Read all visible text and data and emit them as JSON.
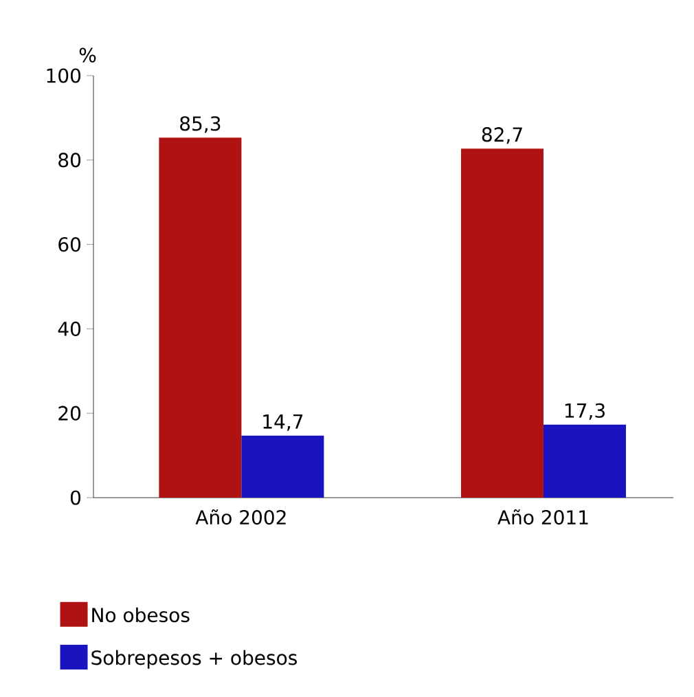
{
  "chart_data": {
    "type": "bar",
    "ylabel": "%",
    "categories": [
      "Año 2002",
      "Año 2011"
    ],
    "series": [
      {
        "name": "No obesos",
        "color": "#b01212",
        "values": [
          85.3,
          82.7
        ],
        "value_labels": [
          "85,3",
          "82,7"
        ]
      },
      {
        "name": "Sobrepesos + obesos",
        "color": "#1a14c0",
        "values": [
          14.7,
          17.3
        ],
        "value_labels": [
          "14,7",
          "17,3"
        ]
      }
    ],
    "ylim": [
      0,
      100
    ],
    "yticks": [
      0,
      20,
      40,
      60,
      80,
      100
    ],
    "grid": false,
    "legend": "bottom"
  }
}
